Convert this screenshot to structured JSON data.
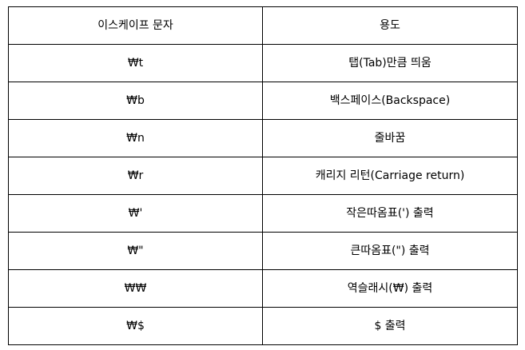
{
  "table": {
    "headers": [
      "이스케이프 문자",
      "용도"
    ],
    "rows": [
      {
        "sequence": "₩t",
        "usage": "탭(Tab)만큼 띄움"
      },
      {
        "sequence": "₩b",
        "usage": "백스페이스(Backspace)"
      },
      {
        "sequence": "₩n",
        "usage": "줄바꿈"
      },
      {
        "sequence": "₩r",
        "usage": "캐리지 리턴(Carriage return)"
      },
      {
        "sequence": "₩'",
        "usage": "작은따옴표(') 출력"
      },
      {
        "sequence": "₩\"",
        "usage": "큰따옴표(\") 출력"
      },
      {
        "sequence": "₩₩",
        "usage": "역슬래시(₩) 출력"
      },
      {
        "sequence": "₩$",
        "usage": "$ 출력"
      }
    ]
  }
}
